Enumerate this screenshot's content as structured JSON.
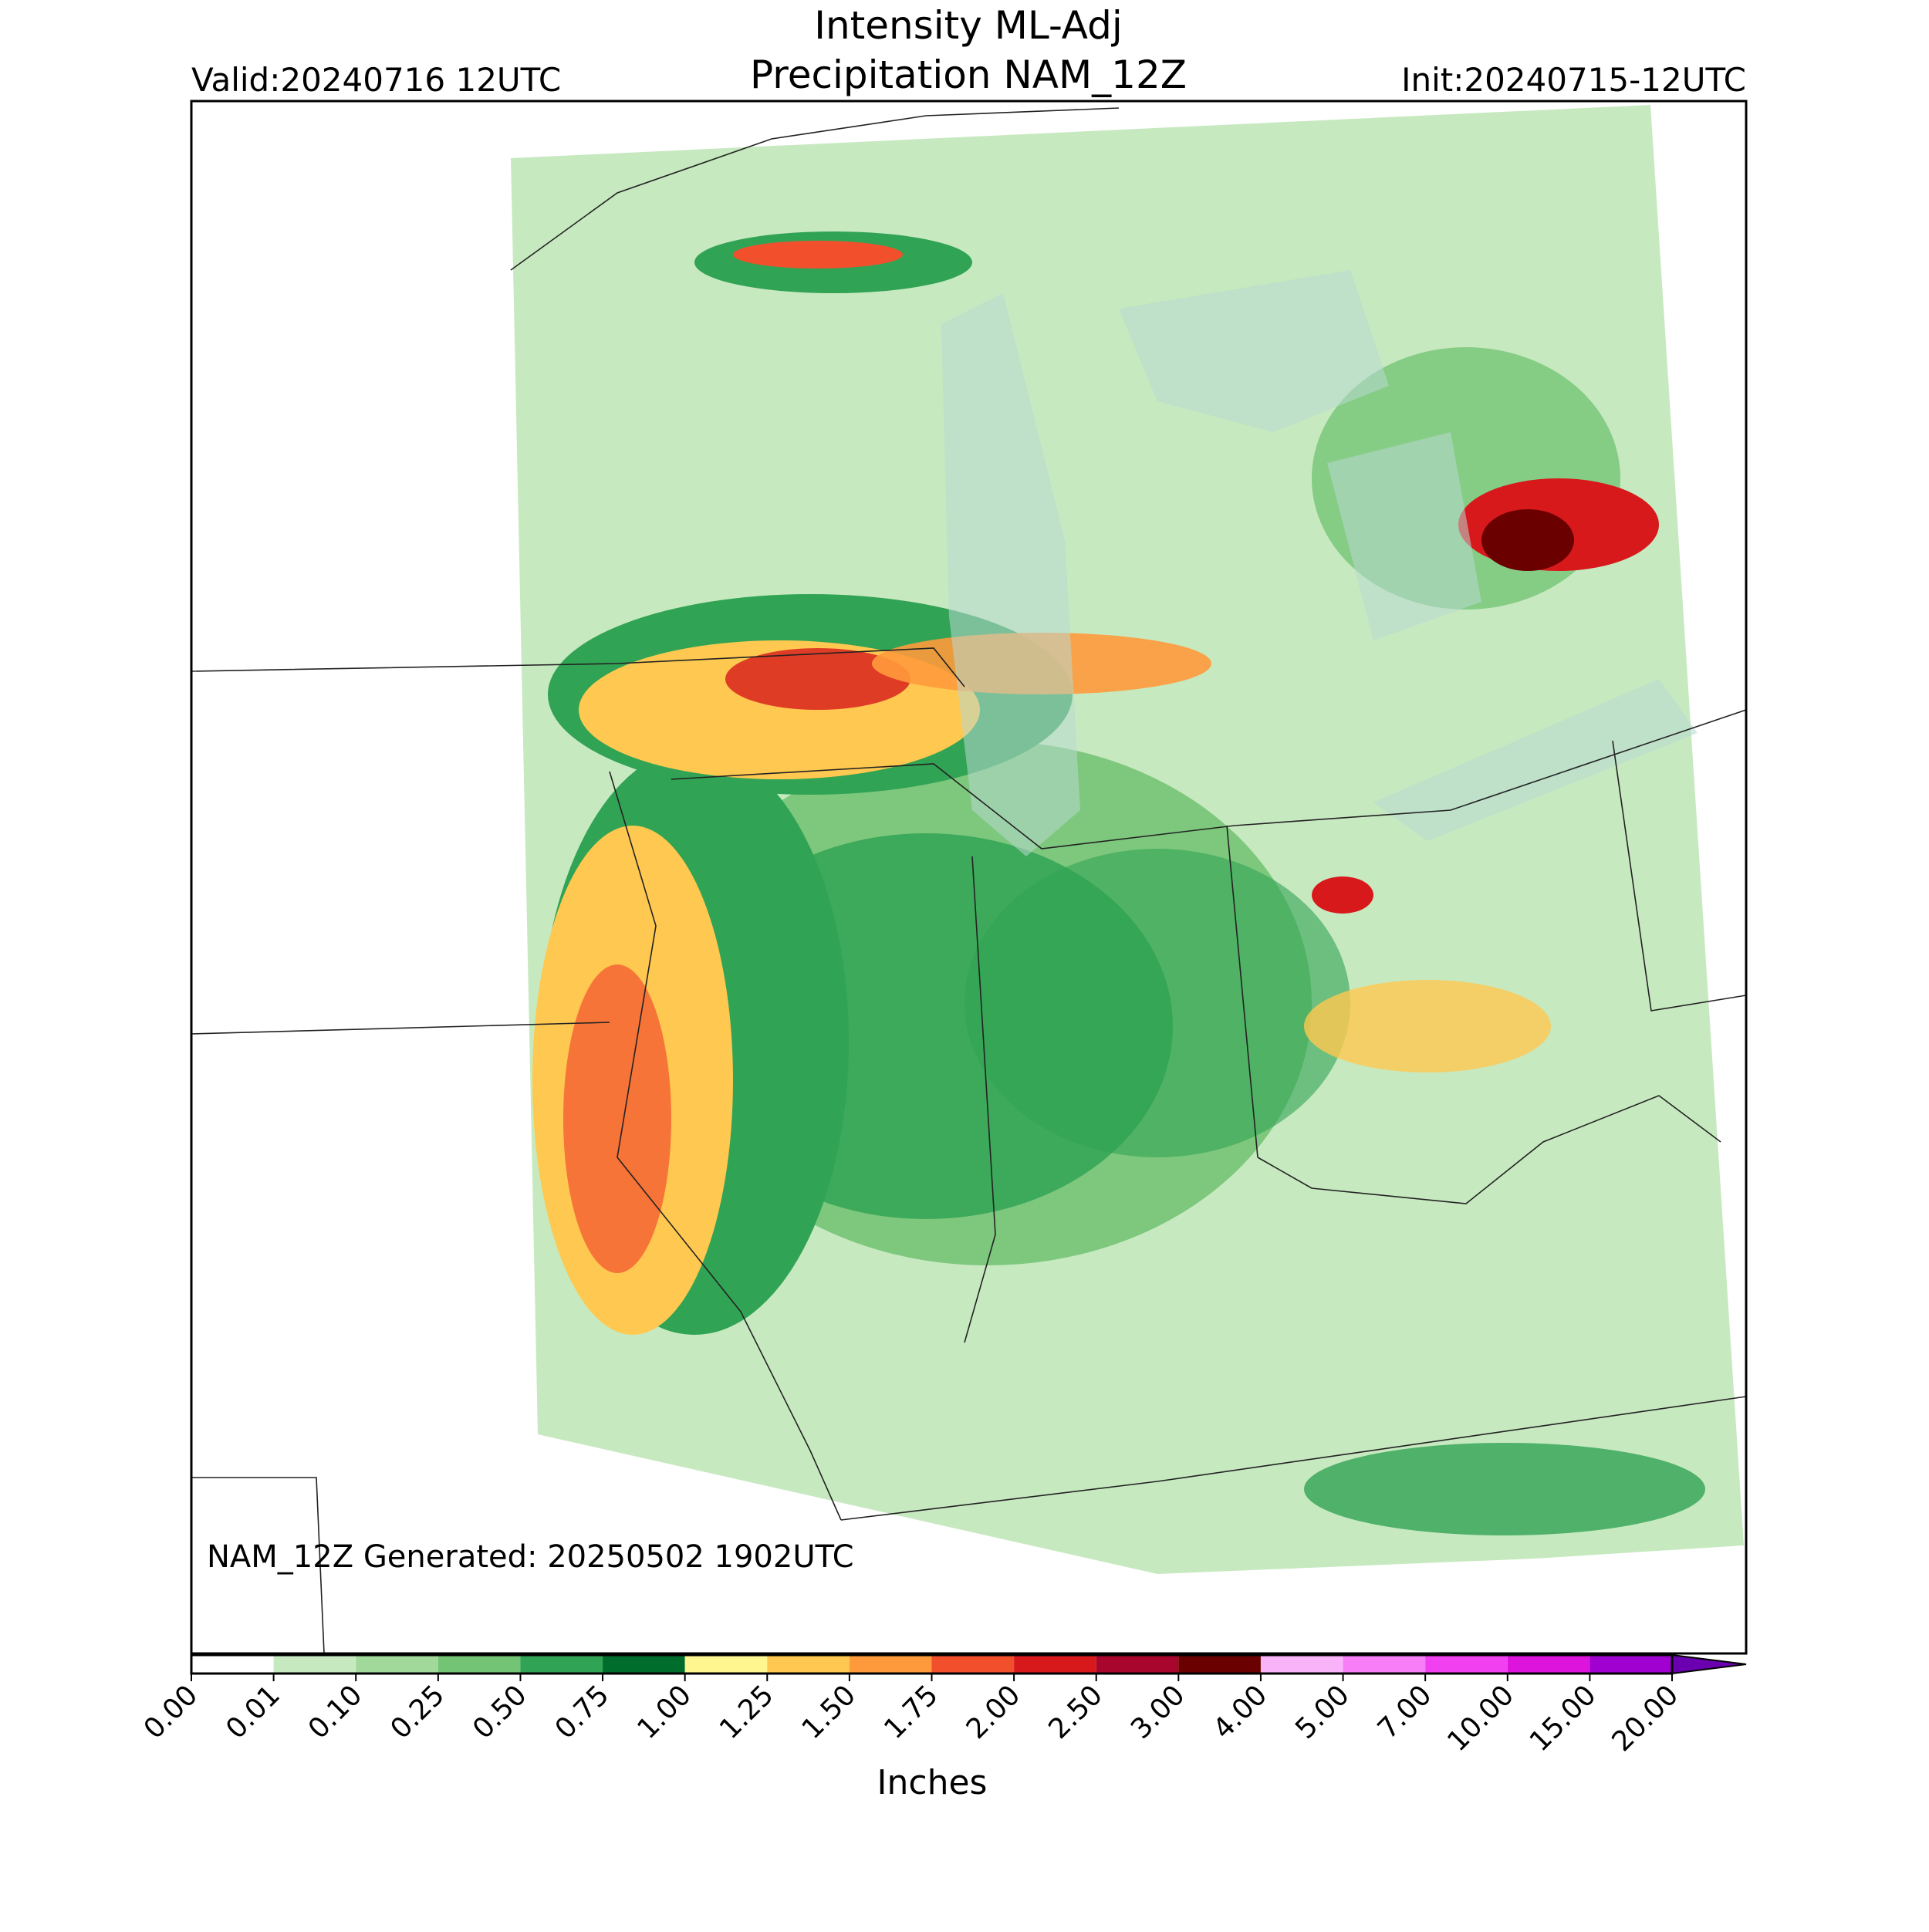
{
  "header": {
    "title_line1": "Intensity ML-Adj",
    "title_line2": "Precipitation NAM_12Z",
    "valid": "Valid:20240716 12UTC",
    "init": "Init:20240715-12UTC"
  },
  "map": {
    "note": "NAM_12Z Generated: 20250502 1902UTC"
  },
  "colorbar": {
    "label": "Inches",
    "ticks": [
      "0.00",
      "0.01",
      "0.10",
      "0.25",
      "0.50",
      "0.75",
      "1.00",
      "1.25",
      "1.50",
      "1.75",
      "2.00",
      "2.50",
      "3.00",
      "4.00",
      "5.00",
      "7.00",
      "10.00",
      "15.00",
      "20.00"
    ],
    "colors": [
      "#ffffff",
      "#c7e9c0",
      "#a1d99b",
      "#74c476",
      "#31a354",
      "#006d2c",
      "#fff68f",
      "#ffc850",
      "#ff9a3c",
      "#f2502d",
      "#d7191c",
      "#a8062c",
      "#6b0000",
      "#f9b3f9",
      "#f77ef7",
      "#f040f0",
      "#dc14dc",
      "#a000d0"
    ],
    "extend_color": "#6a00b0"
  }
}
